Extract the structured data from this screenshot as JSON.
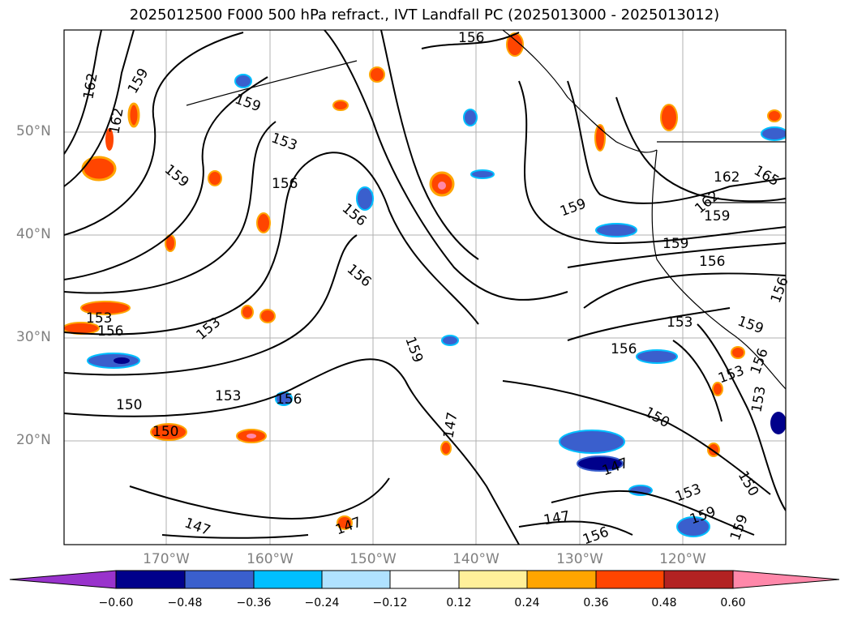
{
  "title": "2025012500 F000 500 hPa refract., IVT Landfall PC (2025013000 - 2025013012)",
  "lat_labels": [
    "50°N",
    "40°N",
    "30°N",
    "20°N"
  ],
  "lon_labels": [
    "170°W",
    "160°W",
    "150°W",
    "140°W",
    "130°W",
    "120°W"
  ],
  "colorbar": {
    "ticks": [
      "−0.60",
      "−0.48",
      "−0.36",
      "−0.24",
      "−0.12",
      "0.12",
      "0.24",
      "0.36",
      "0.48",
      "0.60"
    ],
    "colors": [
      "#9933cc",
      "#00008b",
      "#3a5fcd",
      "#00bfff",
      "#b0e2ff",
      "#ffffff",
      "#fff09a",
      "#ffa500",
      "#ff4500",
      "#b22222",
      "#ff88aa"
    ]
  },
  "contour_labels": [
    "162",
    "159",
    "159",
    "162",
    "159",
    "153",
    "156",
    "159",
    "156",
    "156",
    "156",
    "159",
    "153",
    "156",
    "153",
    "150",
    "150",
    "153",
    "156",
    "147",
    "147",
    "147",
    "156",
    "159",
    "150",
    "147",
    "147",
    "153",
    "159",
    "150",
    "153",
    "153",
    "159",
    "156",
    "156",
    "153",
    "162",
    "162",
    "165",
    "159",
    "159",
    "156",
    "156",
    "156",
    "150"
  ]
}
